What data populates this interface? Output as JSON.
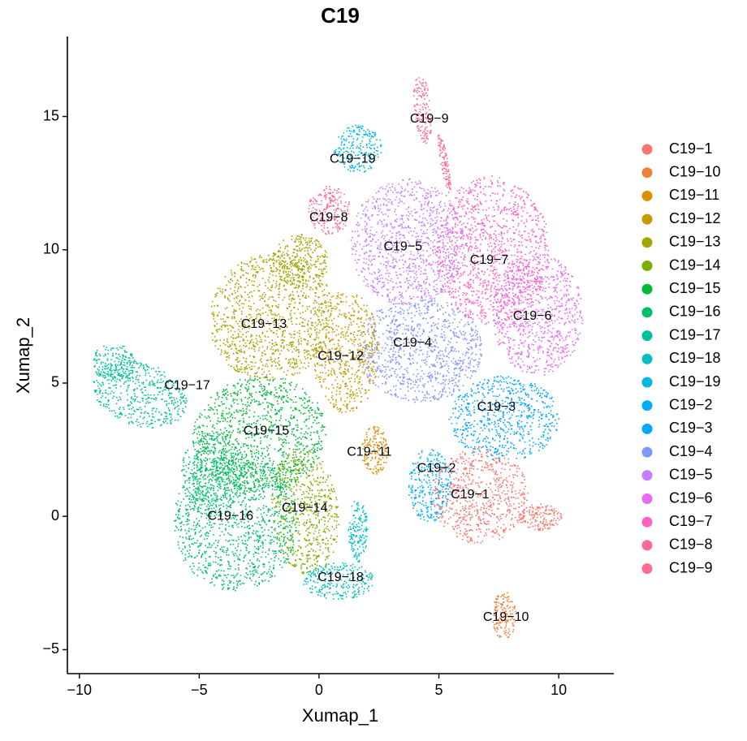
{
  "chart_data": {
    "type": "scatter",
    "title": "C19",
    "xlabel": "Xumap_1",
    "ylabel": "Xumap_2",
    "xlim": [
      -10.5,
      12.3
    ],
    "ylim": [
      -5.9,
      18.0
    ],
    "x_ticks": [
      {
        "value": -10,
        "label": "−10"
      },
      {
        "value": -5,
        "label": "−5"
      },
      {
        "value": 0,
        "label": "0"
      },
      {
        "value": 5,
        "label": "5"
      },
      {
        "value": 10,
        "label": "10"
      }
    ],
    "y_ticks": [
      {
        "value": -5,
        "label": "−5"
      },
      {
        "value": 0,
        "label": "0"
      },
      {
        "value": 5,
        "label": "5"
      },
      {
        "value": 10,
        "label": "10"
      },
      {
        "value": 15,
        "label": "15"
      }
    ],
    "grid": false,
    "legend_position": "right",
    "series": [
      {
        "name": "C19−1",
        "color": "#F8766D",
        "label_x": 6.3,
        "label_y": 0.8
      },
      {
        "name": "C19−10",
        "color": "#EC8239",
        "label_x": 7.8,
        "label_y": -3.8
      },
      {
        "name": "C19−11",
        "color": "#DB8E00",
        "label_x": 2.1,
        "label_y": 2.4
      },
      {
        "name": "C19−12",
        "color": "#C59900",
        "label_x": 0.9,
        "label_y": 6.0
      },
      {
        "name": "C19−13",
        "color": "#A3A500",
        "label_x": -2.3,
        "label_y": 7.2
      },
      {
        "name": "C19−14",
        "color": "#7CAE00",
        "label_x": -0.6,
        "label_y": 0.3
      },
      {
        "name": "C19−15",
        "color": "#00BA38",
        "label_x": -2.2,
        "label_y": 3.2
      },
      {
        "name": "C19−16",
        "color": "#00BE6C",
        "label_x": -3.7,
        "label_y": 0.0
      },
      {
        "name": "C19−17",
        "color": "#00C19A",
        "label_x": -5.5,
        "label_y": 4.9
      },
      {
        "name": "C19−18",
        "color": "#00BFC4",
        "label_x": 0.9,
        "label_y": -2.3
      },
      {
        "name": "C19−19",
        "color": "#00B9E3",
        "label_x": 1.4,
        "label_y": 13.4
      },
      {
        "name": "C19−2",
        "color": "#00ADFA",
        "label_x": 4.9,
        "label_y": 1.8
      },
      {
        "name": "C19−3",
        "color": "#00A9FF",
        "label_x": 7.4,
        "label_y": 4.1
      },
      {
        "name": "C19−4",
        "color": "#7F96FF",
        "label_x": 3.9,
        "label_y": 6.5
      },
      {
        "name": "C19−5",
        "color": "#C77CFF",
        "label_x": 3.5,
        "label_y": 10.1
      },
      {
        "name": "C19−6",
        "color": "#E76BF3",
        "label_x": 8.9,
        "label_y": 7.5
      },
      {
        "name": "C19−7",
        "color": "#FF61C3",
        "label_x": 7.1,
        "label_y": 9.6
      },
      {
        "name": "C19−8",
        "color": "#FF6A98",
        "label_x": 0.4,
        "label_y": 11.2
      },
      {
        "name": "C19−9",
        "color": "#FF6C91",
        "label_x": 4.6,
        "label_y": 14.9
      }
    ]
  }
}
